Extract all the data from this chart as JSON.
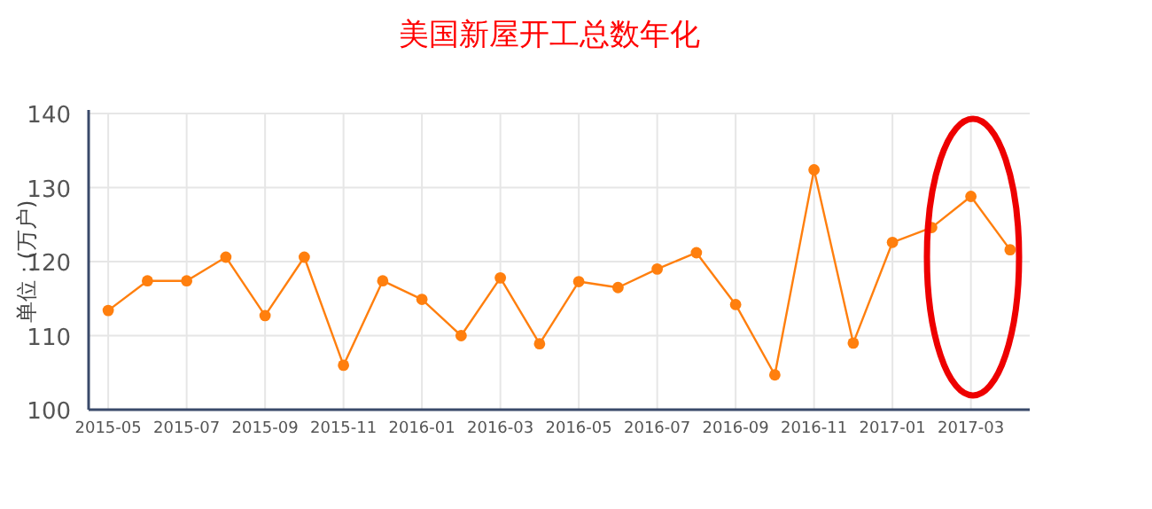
{
  "chart_data": {
    "type": "line",
    "title": "美国新屋开工总数年化",
    "ylabel": "单位：(万户)",
    "categories": [
      "2015-05",
      null,
      "2015-07",
      null,
      "2015-09",
      null,
      "2015-11",
      null,
      "2016-01",
      null,
      "2016-03",
      null,
      "2016-05",
      null,
      "2016-07",
      null,
      "2016-09",
      null,
      "2016-11",
      null,
      "2017-01",
      null,
      "2017-03",
      null
    ],
    "series": [
      {
        "color": "#ff7f0e",
        "values": [
          113.4,
          117.4,
          117.4,
          120.6,
          112.7,
          120.6,
          106.0,
          117.4,
          114.9,
          110.0,
          117.8,
          108.9,
          117.3,
          116.5,
          119.0,
          121.2,
          114.2,
          104.7,
          132.4,
          109.0,
          122.6,
          124.6,
          128.8,
          121.6
        ]
      }
    ],
    "ylim": [
      100,
      140
    ],
    "yticks": [
      100,
      110,
      120,
      130,
      140
    ],
    "grid": true,
    "marker": "circle"
  }
}
